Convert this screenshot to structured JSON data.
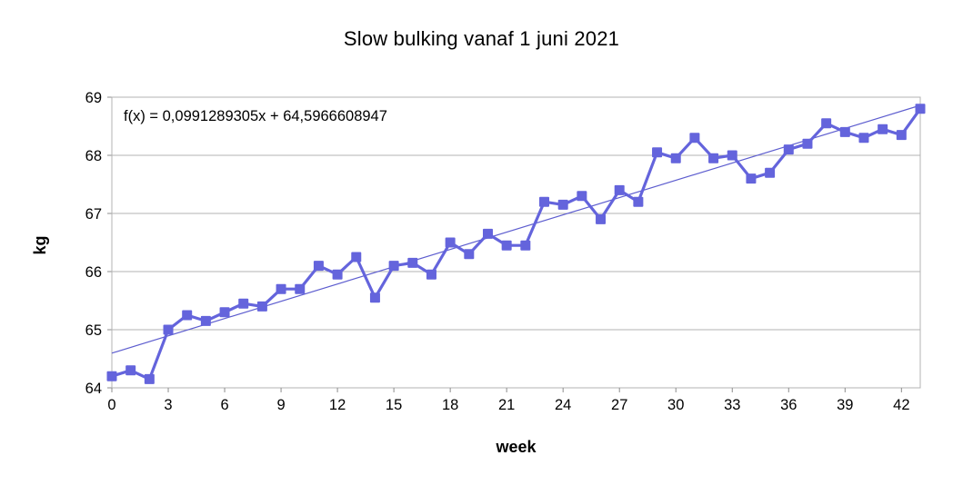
{
  "chart_data": {
    "type": "line",
    "title": "Slow bulking vanaf 1 juni 2021",
    "xlabel": "week",
    "ylabel": "kg",
    "annotation": "f(x) = 0,0991289305x + 64,5966608947",
    "x": [
      0,
      1,
      2,
      3,
      4,
      5,
      6,
      7,
      8,
      9,
      10,
      11,
      12,
      13,
      14,
      15,
      16,
      17,
      18,
      19,
      20,
      21,
      22,
      23,
      24,
      25,
      26,
      27,
      28,
      29,
      30,
      31,
      32,
      33,
      34,
      35,
      36,
      37,
      38,
      39,
      40,
      41,
      42,
      43
    ],
    "series": [
      {
        "name": "kg",
        "values": [
          64.2,
          64.3,
          64.15,
          65.0,
          65.25,
          65.15,
          65.3,
          65.45,
          65.4,
          65.7,
          65.7,
          66.1,
          65.95,
          66.25,
          65.55,
          66.1,
          66.15,
          65.95,
          66.5,
          66.3,
          66.65,
          66.45,
          66.45,
          67.2,
          67.15,
          67.3,
          66.9,
          67.4,
          67.2,
          68.05,
          67.95,
          68.3,
          67.95,
          68.0,
          67.6,
          67.7,
          68.1,
          68.2,
          68.55,
          68.4,
          68.3,
          68.45,
          68.35,
          68.8
        ]
      }
    ],
    "trendline": {
      "slope": 0.0991289305,
      "intercept": 64.5966608947
    },
    "xlim": [
      0,
      43
    ],
    "ylim": [
      64,
      69
    ],
    "xticks": [
      0,
      3,
      6,
      9,
      12,
      15,
      18,
      21,
      24,
      27,
      30,
      33,
      36,
      39,
      42
    ],
    "yticks": [
      64,
      65,
      66,
      67,
      68,
      69
    ],
    "grid": "horizontal",
    "legend": "none",
    "colors": {
      "series": "#6464dc",
      "trend": "#5d5dcf",
      "grid": "#b3b3b3",
      "tick": "#8c8c8c",
      "text": "#000000"
    }
  }
}
